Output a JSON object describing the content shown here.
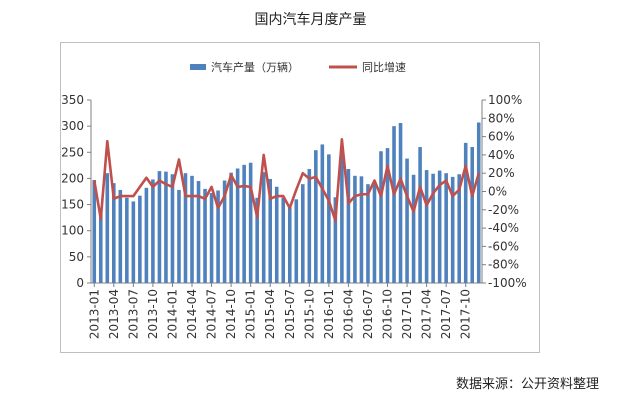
{
  "title": "国内汽车月度产量",
  "source_note": "数据来源：公开资料整理",
  "chart_data": {
    "type": "bar",
    "title": "国内汽车月度产量",
    "legend_position": "top",
    "categories": [
      "2013-01",
      "2013-02",
      "2013-03",
      "2013-04",
      "2013-05",
      "2013-06",
      "2013-07",
      "2013-08",
      "2013-09",
      "2013-10",
      "2013-11",
      "2013-12",
      "2014-01",
      "2014-02",
      "2014-03",
      "2014-04",
      "2014-05",
      "2014-06",
      "2014-07",
      "2014-08",
      "2014-09",
      "2014-10",
      "2014-11",
      "2014-12",
      "2015-01",
      "2015-02",
      "2015-03",
      "2015-04",
      "2015-05",
      "2015-06",
      "2015-07",
      "2015-08",
      "2015-09",
      "2015-10",
      "2015-11",
      "2015-12",
      "2016-01",
      "2016-02",
      "2016-03",
      "2016-04",
      "2016-05",
      "2016-06",
      "2016-07",
      "2016-08",
      "2016-09",
      "2016-10",
      "2016-11",
      "2016-12",
      "2017-01",
      "2017-02",
      "2017-03",
      "2017-04",
      "2017-05",
      "2017-06",
      "2017-07",
      "2017-08",
      "2017-09",
      "2017-10",
      "2017-11",
      "2017-12"
    ],
    "x_tick_labels": [
      "2013-01",
      "2013-04",
      "2013-07",
      "2013-10",
      "2014-01",
      "2014-04",
      "2014-07",
      "2014-10",
      "2015-01",
      "2015-04",
      "2015-07",
      "2015-10",
      "2016-01",
      "2016-04",
      "2016-07",
      "2016-10",
      "2017-01",
      "2017-04",
      "2017-07",
      "2017-10"
    ],
    "y_left": {
      "range": [
        0,
        350
      ],
      "ticks": [
        "0",
        "50",
        "100",
        "150",
        "200",
        "250",
        "300",
        "350"
      ]
    },
    "y_right": {
      "range": [
        -100,
        100
      ],
      "ticks": [
        "-100%",
        "-80%",
        "-60%",
        "-40%",
        "-20%",
        "0%",
        "20%",
        "40%",
        "60%",
        "80%",
        "100%"
      ]
    },
    "series": [
      {
        "name": "汽车产量（万辆）",
        "type": "bar",
        "axis": "left",
        "color": "#4f81bd",
        "values": [
          197,
          138,
          210,
          191,
          178,
          163,
          156,
          167,
          182,
          198,
          214,
          213,
          208,
          178,
          210,
          205,
          195,
          180,
          172,
          177,
          196,
          211,
          219,
          226,
          230,
          163,
          212,
          199,
          184,
          163,
          150,
          160,
          189,
          218,
          254,
          265,
          246,
          164,
          246,
          218,
          205,
          204,
          189,
          191,
          252,
          258,
          300,
          306,
          238,
          207,
          260,
          216,
          209,
          215,
          210,
          203,
          208,
          268,
          260,
          307
        ]
      },
      {
        "name": "同比增速",
        "type": "line",
        "axis": "right",
        "color": "#c0504d",
        "values": [
          12,
          -30,
          55,
          -8,
          -5,
          -5,
          -5,
          5,
          15,
          5,
          12,
          8,
          5,
          35,
          -5,
          -5,
          -5,
          -8,
          5,
          -18,
          -5,
          18,
          5,
          6,
          5,
          -28,
          40,
          -8,
          -5,
          -5,
          -18,
          2,
          20,
          14,
          16,
          3,
          -10,
          -32,
          57,
          -13,
          -5,
          -3,
          -3,
          12,
          -5,
          28,
          -3,
          14,
          -5,
          -22,
          5,
          -15,
          -2,
          7,
          12,
          -5,
          2,
          28,
          -5,
          20
        ]
      }
    ]
  }
}
